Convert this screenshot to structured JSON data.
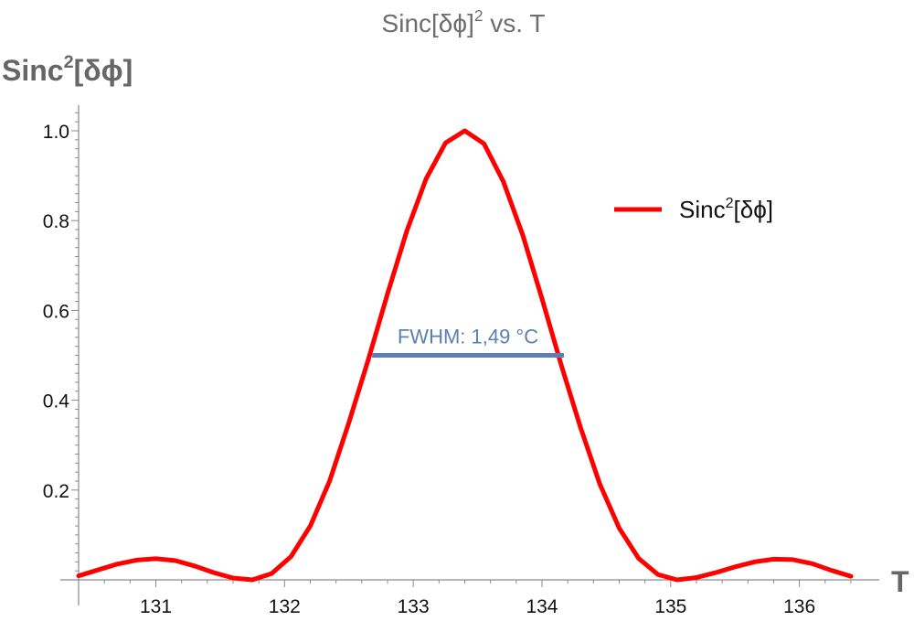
{
  "chart_data": {
    "type": "line",
    "title_main": "Sinc[δϕ]",
    "title_sup": "2",
    "title_rest": " vs. T",
    "xlabel": "T",
    "ylabel_main": "Sinc",
    "ylabel_sup": "2",
    "ylabel_rest": "[δϕ]",
    "xlim": [
      130.4,
      136.45
    ],
    "ylim": [
      0,
      1.05
    ],
    "x_ticks": [
      "131",
      "132",
      "133",
      "134",
      "135",
      "136"
    ],
    "y_ticks": [
      "0.2",
      "0.4",
      "0.6",
      "0.8",
      "1.0"
    ],
    "series": [
      {
        "name_main": "Sinc",
        "name_sup": "2",
        "name_rest": "[δϕ]",
        "color": "#ff0000",
        "x": [
          130.4,
          130.55,
          130.7,
          130.85,
          131.0,
          131.15,
          131.3,
          131.45,
          131.6,
          131.75,
          131.9,
          132.05,
          132.2,
          132.35,
          132.5,
          132.65,
          132.8,
          132.95,
          133.1,
          133.25,
          133.4,
          133.55,
          133.7,
          133.85,
          134.0,
          134.15,
          134.3,
          134.45,
          134.6,
          134.75,
          134.9,
          135.05,
          135.2,
          135.35,
          135.5,
          135.65,
          135.8,
          135.95,
          136.1,
          136.25,
          136.4
        ],
        "y": [
          0.009,
          0.022,
          0.035,
          0.044,
          0.047,
          0.043,
          0.031,
          0.016,
          0.004,
          0.0,
          0.014,
          0.052,
          0.12,
          0.22,
          0.35,
          0.49,
          0.637,
          0.777,
          0.893,
          0.973,
          1.0,
          0.971,
          0.887,
          0.768,
          0.626,
          0.478,
          0.339,
          0.213,
          0.115,
          0.048,
          0.012,
          0.0,
          0.005,
          0.016,
          0.029,
          0.04,
          0.046,
          0.045,
          0.036,
          0.021,
          0.008
        ]
      }
    ],
    "annotations": [
      {
        "text": "FWHM: 1,49 °C",
        "x0": 132.68,
        "x1": 134.17,
        "y": 0.5,
        "color": "#5b7fb5"
      }
    ],
    "legend_position": "top-right"
  }
}
